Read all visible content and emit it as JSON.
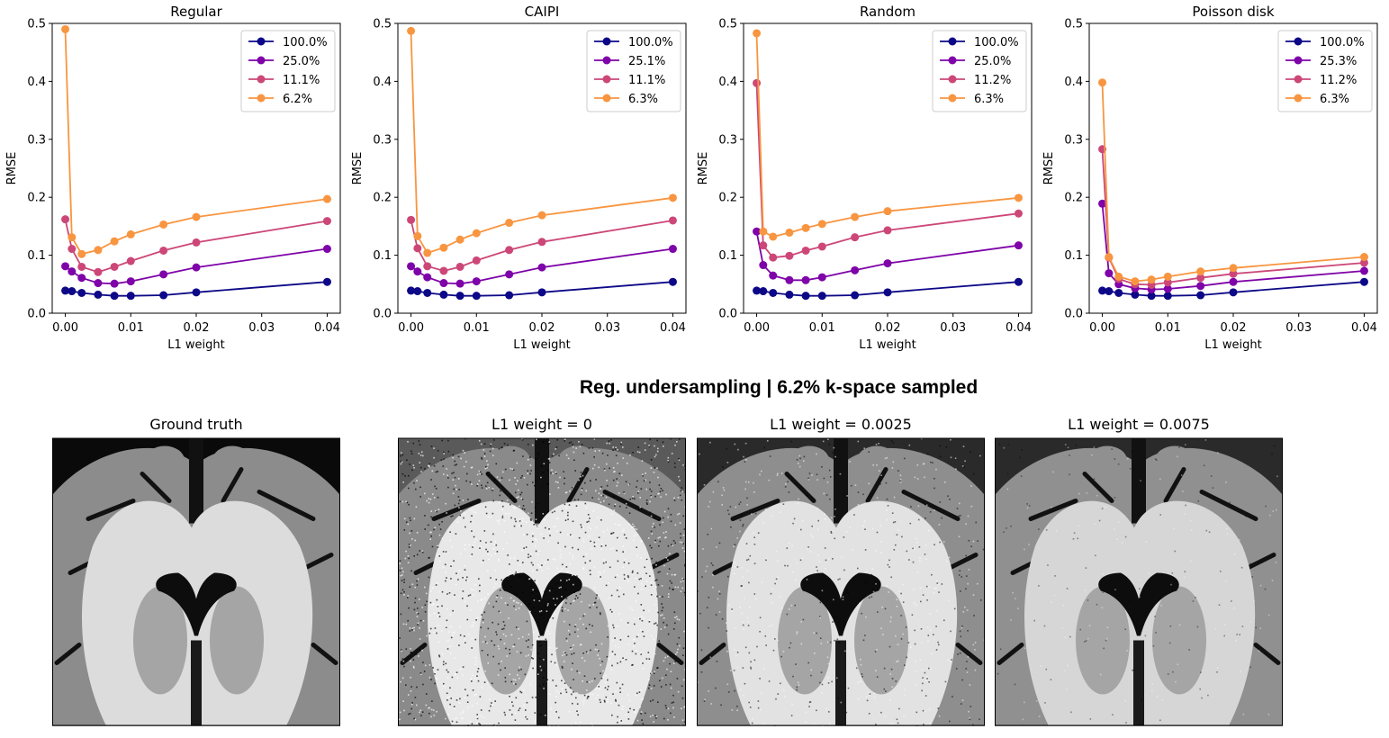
{
  "chart_data": [
    {
      "type": "line",
      "title": "Regular",
      "xlabel": "L1 weight",
      "ylabel": "RMSE",
      "xlim": [
        -0.002,
        0.042
      ],
      "ylim": [
        0.0,
        0.5
      ],
      "xticks": [
        "0.00",
        "0.01",
        "0.02",
        "0.03",
        "0.04"
      ],
      "yticks": [
        "0.0",
        "0.1",
        "0.2",
        "0.3",
        "0.4",
        "0.5"
      ],
      "legend_position": "top-right",
      "x": [
        0,
        0.001,
        0.0025,
        0.005,
        0.0075,
        0.01,
        0.015,
        0.02,
        0.04
      ],
      "series": [
        {
          "name": "100.0%",
          "color": "#0d0887",
          "values": [
            0.039,
            0.038,
            0.035,
            0.032,
            0.03,
            0.03,
            0.031,
            0.036,
            0.054
          ]
        },
        {
          "name": "25.0%",
          "color": "#7e03a8",
          "values": [
            0.081,
            0.072,
            0.061,
            0.052,
            0.051,
            0.055,
            0.067,
            0.079,
            0.111
          ]
        },
        {
          "name": "11.1%",
          "color": "#cc4778",
          "values": [
            0.162,
            0.111,
            0.08,
            0.071,
            0.08,
            0.09,
            0.108,
            0.122,
            0.159
          ]
        },
        {
          "name": "6.2%",
          "color": "#f89540",
          "values": [
            0.49,
            0.131,
            0.102,
            0.109,
            0.124,
            0.136,
            0.153,
            0.166,
            0.197
          ]
        }
      ]
    },
    {
      "type": "line",
      "title": "CAIPI",
      "xlabel": "L1 weight",
      "ylabel": "RMSE",
      "xlim": [
        -0.002,
        0.042
      ],
      "ylim": [
        0.0,
        0.5
      ],
      "xticks": [
        "0.00",
        "0.01",
        "0.02",
        "0.03",
        "0.04"
      ],
      "yticks": [
        "0.0",
        "0.1",
        "0.2",
        "0.3",
        "0.4",
        "0.5"
      ],
      "legend_position": "top-right",
      "x": [
        0,
        0.001,
        0.0025,
        0.005,
        0.0075,
        0.01,
        0.015,
        0.02,
        0.04
      ],
      "series": [
        {
          "name": "100.0%",
          "color": "#0d0887",
          "values": [
            0.039,
            0.038,
            0.035,
            0.032,
            0.03,
            0.03,
            0.031,
            0.036,
            0.054
          ]
        },
        {
          "name": "25.1%",
          "color": "#7e03a8",
          "values": [
            0.081,
            0.072,
            0.062,
            0.052,
            0.051,
            0.055,
            0.067,
            0.079,
            0.111
          ]
        },
        {
          "name": "11.1%",
          "color": "#cc4778",
          "values": [
            0.161,
            0.112,
            0.081,
            0.073,
            0.08,
            0.091,
            0.109,
            0.123,
            0.16
          ]
        },
        {
          "name": "6.3%",
          "color": "#f89540",
          "values": [
            0.487,
            0.133,
            0.104,
            0.113,
            0.127,
            0.138,
            0.156,
            0.169,
            0.199
          ]
        }
      ]
    },
    {
      "type": "line",
      "title": "Random",
      "xlabel": "L1 weight",
      "ylabel": "RMSE",
      "xlim": [
        -0.002,
        0.042
      ],
      "ylim": [
        0.0,
        0.5
      ],
      "xticks": [
        "0.00",
        "0.01",
        "0.02",
        "0.03",
        "0.04"
      ],
      "yticks": [
        "0.0",
        "0.1",
        "0.2",
        "0.3",
        "0.4",
        "0.5"
      ],
      "legend_position": "top-right",
      "x": [
        0,
        0.001,
        0.0025,
        0.005,
        0.0075,
        0.01,
        0.015,
        0.02,
        0.04
      ],
      "series": [
        {
          "name": "100.0%",
          "color": "#0d0887",
          "values": [
            0.039,
            0.038,
            0.035,
            0.032,
            0.03,
            0.03,
            0.031,
            0.036,
            0.054
          ]
        },
        {
          "name": "25.0%",
          "color": "#7e03a8",
          "values": [
            0.141,
            0.083,
            0.065,
            0.057,
            0.057,
            0.062,
            0.074,
            0.086,
            0.117
          ]
        },
        {
          "name": "11.2%",
          "color": "#cc4778",
          "values": [
            0.397,
            0.117,
            0.096,
            0.099,
            0.108,
            0.115,
            0.131,
            0.143,
            0.172
          ]
        },
        {
          "name": "6.3%",
          "color": "#f89540",
          "values": [
            0.483,
            0.141,
            0.132,
            0.139,
            0.147,
            0.154,
            0.166,
            0.176,
            0.199
          ]
        }
      ]
    },
    {
      "type": "line",
      "title": "Poisson disk",
      "xlabel": "L1 weight",
      "ylabel": "RMSE",
      "xlim": [
        -0.002,
        0.042
      ],
      "ylim": [
        0.0,
        0.5
      ],
      "xticks": [
        "0.00",
        "0.01",
        "0.02",
        "0.03",
        "0.04"
      ],
      "yticks": [
        "0.0",
        "0.1",
        "0.2",
        "0.3",
        "0.4",
        "0.5"
      ],
      "legend_position": "top-right",
      "x": [
        0,
        0.001,
        0.0025,
        0.005,
        0.0075,
        0.01,
        0.015,
        0.02,
        0.04
      ],
      "series": [
        {
          "name": "100.0%",
          "color": "#0d0887",
          "values": [
            0.039,
            0.038,
            0.035,
            0.032,
            0.03,
            0.03,
            0.031,
            0.036,
            0.054
          ]
        },
        {
          "name": "25.3%",
          "color": "#7e03a8",
          "values": [
            0.189,
            0.069,
            0.05,
            0.043,
            0.041,
            0.042,
            0.047,
            0.054,
            0.073
          ]
        },
        {
          "name": "11.2%",
          "color": "#cc4778",
          "values": [
            0.283,
            0.096,
            0.059,
            0.05,
            0.049,
            0.053,
            0.061,
            0.068,
            0.087
          ]
        },
        {
          "name": "6.3%",
          "color": "#f89540",
          "values": [
            0.398,
            0.097,
            0.063,
            0.055,
            0.058,
            0.063,
            0.072,
            0.078,
            0.097
          ]
        }
      ]
    }
  ],
  "suptitle": "Reg. undersampling | 6.2% k-space sampled",
  "images": [
    {
      "title": "Ground truth",
      "noise": 0
    },
    {
      "title": "L1 weight = 0",
      "noise": 3
    },
    {
      "title": "L1 weight = 0.0025",
      "noise": 2
    },
    {
      "title": "L1 weight = 0.0075",
      "noise": 1
    }
  ]
}
